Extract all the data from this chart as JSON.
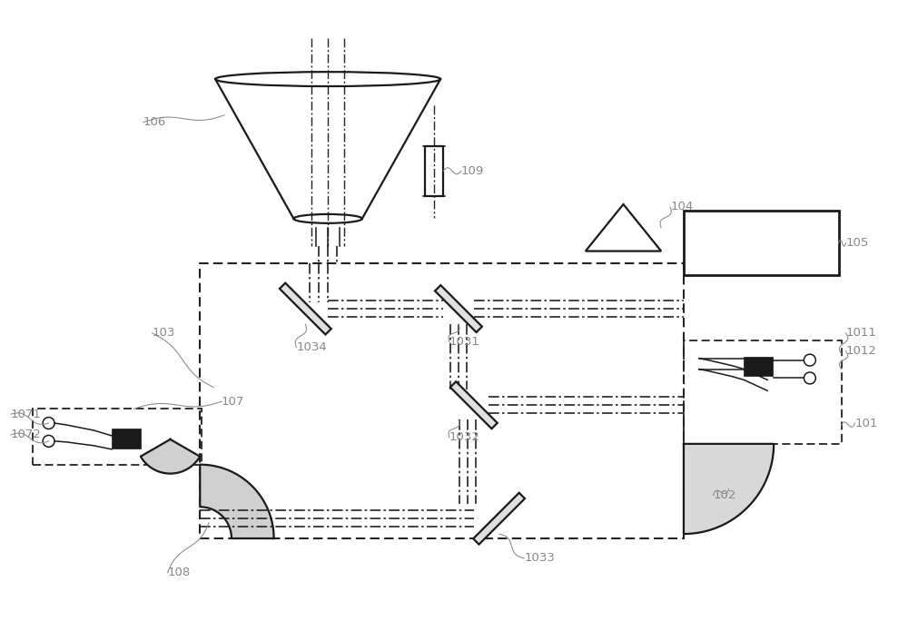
{
  "bg_color": "#ffffff",
  "line_color": "#1a1a1a",
  "label_color": "#888888",
  "dash_color": "#222222",
  "figsize": [
    10.0,
    6.95
  ],
  "dpi": 100,
  "xlim": [
    0,
    10
  ],
  "ylim": [
    0,
    6.95
  ]
}
